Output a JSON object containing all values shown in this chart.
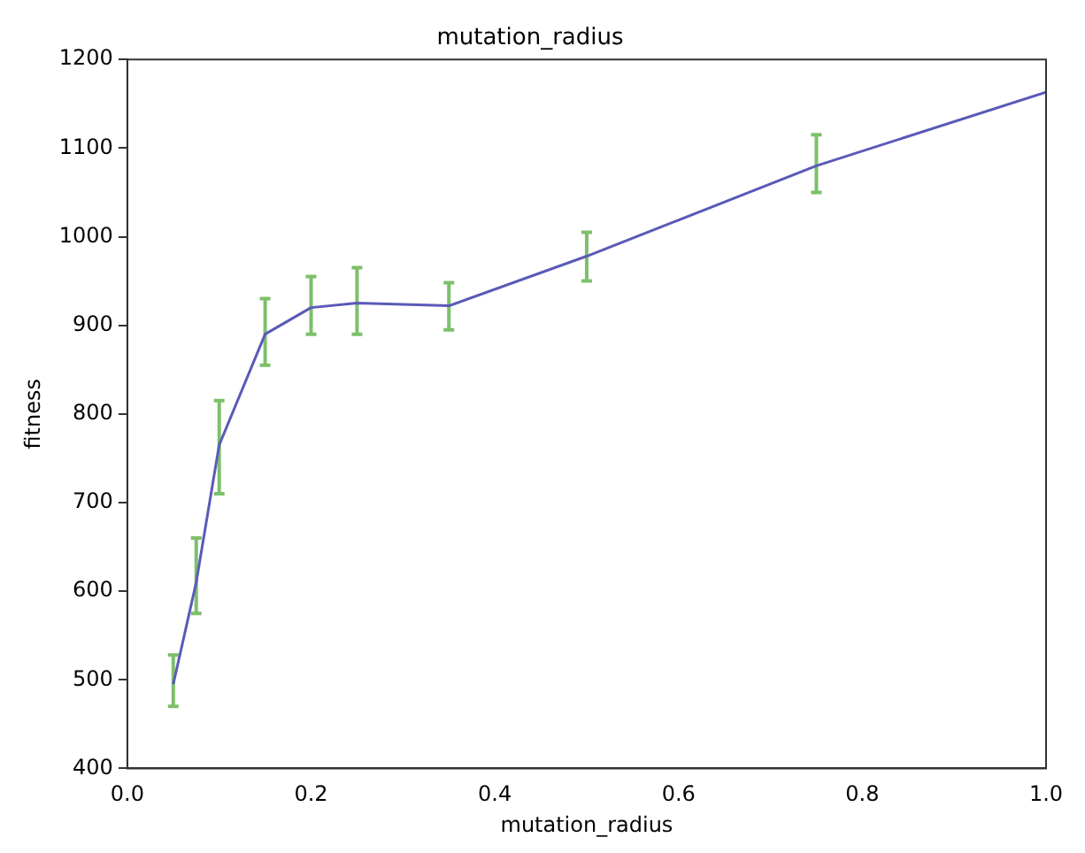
{
  "chart_data": {
    "type": "line",
    "title": "mutation_radius",
    "xlabel": "mutation_radius",
    "ylabel": "fitness",
    "x": [
      0.05,
      0.075,
      0.1,
      0.15,
      0.2,
      0.25,
      0.35,
      0.5,
      0.75,
      1.0
    ],
    "series": [
      {
        "color": "#5a5ab8",
        "values": [
          495,
          610,
          765,
          890,
          920,
          925,
          922,
          978,
          1080,
          1163
        ],
        "errors": [
          [
            470,
            528
          ],
          [
            575,
            660
          ],
          [
            710,
            815
          ],
          [
            855,
            930
          ],
          [
            890,
            955
          ],
          [
            890,
            965
          ],
          [
            895,
            948
          ],
          [
            950,
            1005
          ],
          [
            1050,
            1115
          ],
          null
        ]
      }
    ],
    "xlim": [
      0,
      1
    ],
    "xticks": [
      {
        "value": 0,
        "label": "0.0"
      },
      0.2,
      0.4,
      0.6,
      0.8,
      {
        "value": 1,
        "label": "1.0"
      }
    ],
    "ylim": [
      400,
      1200
    ],
    "yticks": [
      400,
      500,
      600,
      700,
      800,
      900,
      1000,
      1100,
      1200
    ],
    "grid": false,
    "legend": false,
    "marker": "none",
    "line_style": "solid"
  }
}
